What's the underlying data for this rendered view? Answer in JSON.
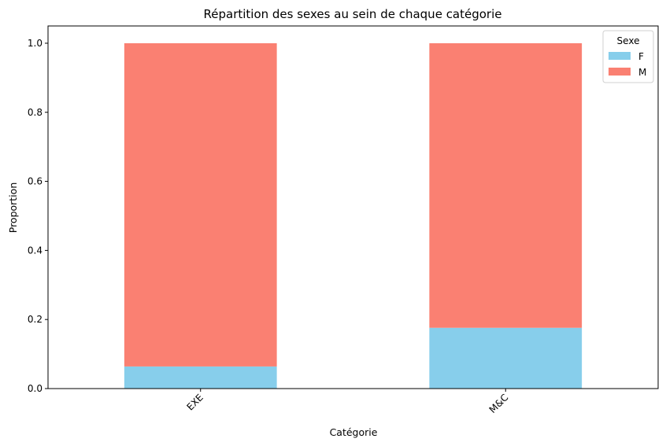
{
  "chart_data": {
    "type": "bar",
    "stacked": true,
    "title": "Répartition des sexes au sein de chaque catégorie",
    "xlabel": "Catégorie",
    "ylabel": "Proportion",
    "categories": [
      "EXE",
      "M&C"
    ],
    "series": [
      {
        "name": "F",
        "values": [
          0.064,
          0.176
        ],
        "color": "#87CEEB"
      },
      {
        "name": "M",
        "values": [
          0.936,
          0.824
        ],
        "color": "#FA8072"
      }
    ],
    "ylim": [
      0,
      1.05
    ],
    "yticks": [
      "0.0",
      "0.2",
      "0.4",
      "0.6",
      "0.8",
      "1.0"
    ],
    "grid": false,
    "legend": {
      "title": "Sexe",
      "position": "top-right"
    }
  }
}
